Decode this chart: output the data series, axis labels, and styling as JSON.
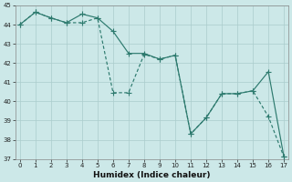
{
  "line1_x": [
    0,
    1,
    2,
    3,
    4,
    5,
    6,
    7,
    8,
    9,
    10,
    11,
    12,
    13,
    14,
    15,
    16,
    17
  ],
  "line1_y": [
    44.0,
    44.65,
    44.35,
    44.1,
    44.55,
    44.35,
    43.65,
    42.5,
    42.5,
    42.2,
    42.4,
    38.3,
    39.15,
    40.4,
    40.4,
    40.55,
    41.55,
    37.1
  ],
  "line2_x": [
    0,
    1,
    2,
    3,
    4,
    5,
    6,
    7,
    8,
    9,
    10,
    11,
    12,
    13,
    14,
    15,
    16,
    17
  ],
  "line2_y": [
    44.0,
    44.65,
    44.35,
    44.1,
    44.1,
    44.35,
    40.45,
    40.45,
    42.45,
    42.2,
    42.4,
    38.3,
    39.15,
    40.4,
    40.4,
    40.55,
    39.2,
    37.1
  ],
  "line_color": "#2d7a6e",
  "bg_color": "#cce8e8",
  "grid_color": "#aacccc",
  "xlabel": "Humidex (Indice chaleur)",
  "ylim": [
    37,
    45
  ],
  "xlim": [
    -0.3,
    17.3
  ],
  "yticks": [
    37,
    38,
    39,
    40,
    41,
    42,
    43,
    44,
    45
  ],
  "xticks": [
    0,
    1,
    2,
    3,
    4,
    5,
    6,
    7,
    8,
    9,
    10,
    11,
    12,
    13,
    14,
    15,
    16,
    17
  ],
  "tick_fontsize": 5.0,
  "xlabel_fontsize": 6.5,
  "marker_size": 2.0,
  "linewidth": 0.85
}
